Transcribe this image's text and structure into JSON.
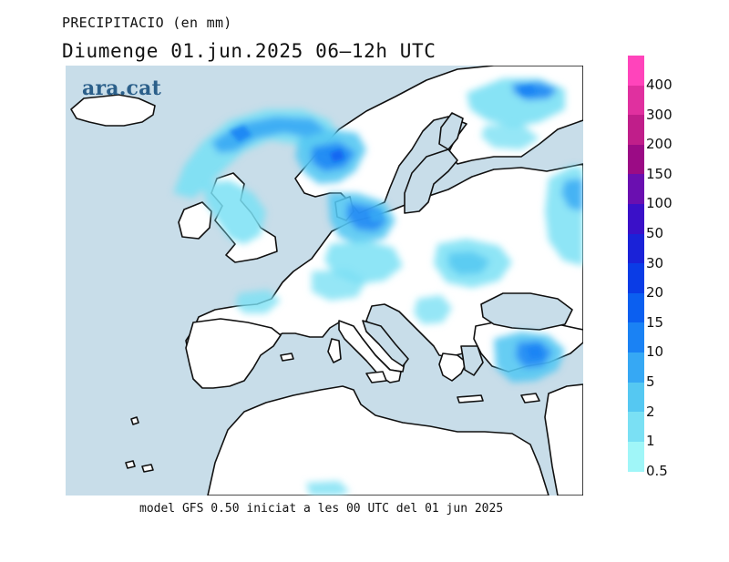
{
  "title": {
    "line1": "PRECIPITACIO (en mm)",
    "line2": "Diumenge  01.jun.2025  06–12h  UTC"
  },
  "logo": {
    "text": "ara.cat"
  },
  "caption": "model GFS 0.50 iniciat a les 00 UTC del 01 jun 2025",
  "legend": {
    "levels": [
      {
        "label": "400",
        "color": "#ff44bb"
      },
      {
        "label": "300",
        "color": "#e0309f"
      },
      {
        "label": "200",
        "color": "#c01e8a"
      },
      {
        "label": "150",
        "color": "#9b0b85"
      },
      {
        "label": "100",
        "color": "#6a0fb0"
      },
      {
        "label": "50",
        "color": "#3a10c8"
      },
      {
        "label": "30",
        "color": "#1a22d8"
      },
      {
        "label": "20",
        "color": "#0a3ce6"
      },
      {
        "label": "15",
        "color": "#0b5ff0"
      },
      {
        "label": "10",
        "color": "#1a82f4"
      },
      {
        "label": "5",
        "color": "#36a8f4"
      },
      {
        "label": "2",
        "color": "#55c8f2"
      },
      {
        "label": "1",
        "color": "#7ae0f4"
      },
      {
        "label": "0.5",
        "color": "#a0f6f8"
      }
    ]
  },
  "map": {
    "sea_color": "#c8dde9",
    "land_color": "#ffffff",
    "coast_color": "#111111"
  }
}
